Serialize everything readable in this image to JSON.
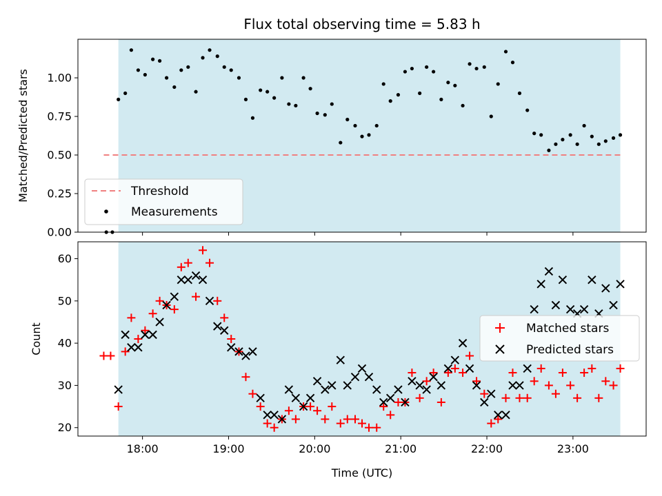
{
  "chart_data": [
    {
      "type": "scatter",
      "panel": "top",
      "title": "Flux total observing time = 5.83 h",
      "ylabel": "Matched/Predicted stars",
      "xlabel": "",
      "xlim_hours": [
        17.25,
        23.85
      ],
      "ylim": [
        0,
        1.25
      ],
      "yticks": [
        0.0,
        0.25,
        0.5,
        0.75,
        1.0
      ],
      "ytick_labels": [
        "0.00",
        "0.25",
        "0.50",
        "0.75",
        "1.00"
      ],
      "shaded_span_hours": [
        17.72,
        23.55
      ],
      "threshold": {
        "label": "Threshold",
        "value": 0.5,
        "x_range_hours": [
          17.55,
          23.55
        ],
        "color": "#f08080"
      },
      "measurements": {
        "label": "Measurements",
        "color": "#000000",
        "x_hours": [
          17.58,
          17.65,
          17.72,
          17.8,
          17.87,
          17.95,
          18.03,
          18.12,
          18.2,
          18.28,
          18.37,
          18.45,
          18.53,
          18.62,
          18.7,
          18.78,
          18.87,
          18.95,
          19.03,
          19.12,
          19.2,
          19.28,
          19.37,
          19.45,
          19.53,
          19.62,
          19.7,
          19.78,
          19.87,
          19.95,
          20.03,
          20.12,
          20.2,
          20.3,
          20.38,
          20.47,
          20.55,
          20.63,
          20.72,
          20.8,
          20.88,
          20.97,
          21.05,
          21.13,
          21.22,
          21.3,
          21.38,
          21.47,
          21.55,
          21.63,
          21.72,
          21.8,
          21.88,
          21.97,
          22.05,
          22.13,
          22.22,
          22.3,
          22.38,
          22.47,
          22.55,
          22.63,
          22.72,
          22.8,
          22.88,
          22.97,
          23.05,
          23.13,
          23.22,
          23.3,
          23.38,
          23.47,
          23.55
        ],
        "y": [
          0.0,
          0.0,
          0.86,
          0.9,
          1.18,
          1.05,
          1.02,
          1.12,
          1.11,
          1.0,
          0.94,
          1.05,
          1.07,
          0.91,
          1.13,
          1.18,
          1.14,
          1.07,
          1.05,
          1.0,
          0.86,
          0.74,
          0.92,
          0.91,
          0.87,
          1.0,
          0.83,
          0.82,
          1.0,
          0.93,
          0.77,
          0.76,
          0.83,
          0.58,
          0.73,
          0.69,
          0.62,
          0.63,
          0.69,
          0.96,
          0.85,
          0.89,
          1.04,
          1.06,
          0.9,
          1.07,
          1.04,
          0.86,
          0.97,
          0.95,
          0.82,
          1.09,
          1.06,
          1.07,
          0.75,
          0.96,
          1.17,
          1.1,
          0.9,
          0.79,
          0.64,
          0.63,
          0.53,
          0.57,
          0.6,
          0.63,
          0.57,
          0.69,
          0.62,
          0.57,
          0.59,
          0.61,
          0.63
        ]
      }
    },
    {
      "type": "scatter",
      "panel": "bottom",
      "title": "",
      "xlabel": "Time (UTC)",
      "ylabel": "Count",
      "xlim_hours": [
        17.25,
        23.85
      ],
      "ylim": [
        18,
        64
      ],
      "yticks": [
        20,
        30,
        40,
        50,
        60
      ],
      "ytick_labels": [
        "20",
        "30",
        "40",
        "50",
        "60"
      ],
      "xticks_hours": [
        18,
        19,
        20,
        21,
        22,
        23
      ],
      "xtick_labels": [
        "18:00",
        "19:00",
        "20:00",
        "21:00",
        "22:00",
        "23:00"
      ],
      "shaded_span_hours": [
        17.72,
        23.55
      ],
      "series": [
        {
          "name": "Matched stars",
          "marker": "plus",
          "color": "#ff0000",
          "x_hours": [
            17.55,
            17.63,
            17.72,
            17.8,
            17.87,
            17.95,
            18.03,
            18.12,
            18.2,
            18.28,
            18.37,
            18.45,
            18.53,
            18.62,
            18.7,
            18.78,
            18.87,
            18.95,
            19.03,
            19.12,
            19.2,
            19.28,
            19.37,
            19.45,
            19.53,
            19.62,
            19.7,
            19.78,
            19.87,
            19.95,
            20.03,
            20.12,
            20.2,
            20.3,
            20.38,
            20.47,
            20.55,
            20.63,
            20.72,
            20.8,
            20.88,
            20.97,
            21.05,
            21.13,
            21.22,
            21.3,
            21.38,
            21.47,
            21.55,
            21.63,
            21.72,
            21.8,
            21.88,
            21.97,
            22.05,
            22.13,
            22.22,
            22.3,
            22.38,
            22.47,
            22.55,
            22.63,
            22.72,
            22.8,
            22.88,
            22.97,
            23.05,
            23.13,
            23.22,
            23.3,
            23.38,
            23.47,
            23.55
          ],
          "y": [
            37,
            37,
            25,
            38,
            46,
            41,
            43,
            47,
            50,
            49,
            48,
            58,
            59,
            51,
            62,
            59,
            50,
            46,
            41,
            38,
            32,
            28,
            25,
            21,
            20,
            22,
            24,
            22,
            25,
            25,
            24,
            22,
            25,
            21,
            22,
            22,
            21,
            20,
            20,
            25,
            23,
            26,
            26,
            33,
            27,
            31,
            33,
            26,
            33,
            34,
            33,
            37,
            31,
            28,
            21,
            22,
            27,
            33,
            27,
            27,
            31,
            34,
            30,
            28,
            33,
            30,
            27,
            33,
            34,
            27,
            31,
            30,
            34
          ]
        },
        {
          "name": "Predicted stars",
          "marker": "x",
          "color": "#000000",
          "x_hours": [
            17.72,
            17.8,
            17.87,
            17.95,
            18.03,
            18.12,
            18.2,
            18.28,
            18.37,
            18.45,
            18.53,
            18.62,
            18.7,
            18.78,
            18.87,
            18.95,
            19.03,
            19.12,
            19.2,
            19.28,
            19.37,
            19.45,
            19.53,
            19.62,
            19.7,
            19.78,
            19.87,
            19.95,
            20.03,
            20.12,
            20.2,
            20.3,
            20.38,
            20.47,
            20.55,
            20.63,
            20.72,
            20.8,
            20.88,
            20.97,
            21.05,
            21.13,
            21.22,
            21.3,
            21.38,
            21.47,
            21.55,
            21.63,
            21.72,
            21.8,
            21.88,
            21.97,
            22.05,
            22.13,
            22.22,
            22.3,
            22.38,
            22.47,
            22.55,
            22.63,
            22.72,
            22.8,
            22.88,
            22.97,
            23.05,
            23.13,
            23.22,
            23.3,
            23.38,
            23.47,
            23.55
          ],
          "y": [
            29,
            42,
            39,
            39,
            42,
            42,
            45,
            49,
            51,
            55,
            55,
            56,
            55,
            50,
            44,
            43,
            39,
            38,
            37,
            38,
            27,
            23,
            23,
            22,
            29,
            27,
            25,
            27,
            31,
            29,
            30,
            36,
            30,
            32,
            34,
            32,
            29,
            26,
            27,
            29,
            26,
            31,
            30,
            29,
            32,
            30,
            34,
            36,
            40,
            34,
            30,
            26,
            28,
            23,
            23,
            30,
            30,
            34,
            48,
            54,
            57,
            49,
            55,
            48,
            47,
            48,
            55,
            47,
            53,
            49,
            54
          ]
        }
      ],
      "legend_position": "right"
    }
  ]
}
